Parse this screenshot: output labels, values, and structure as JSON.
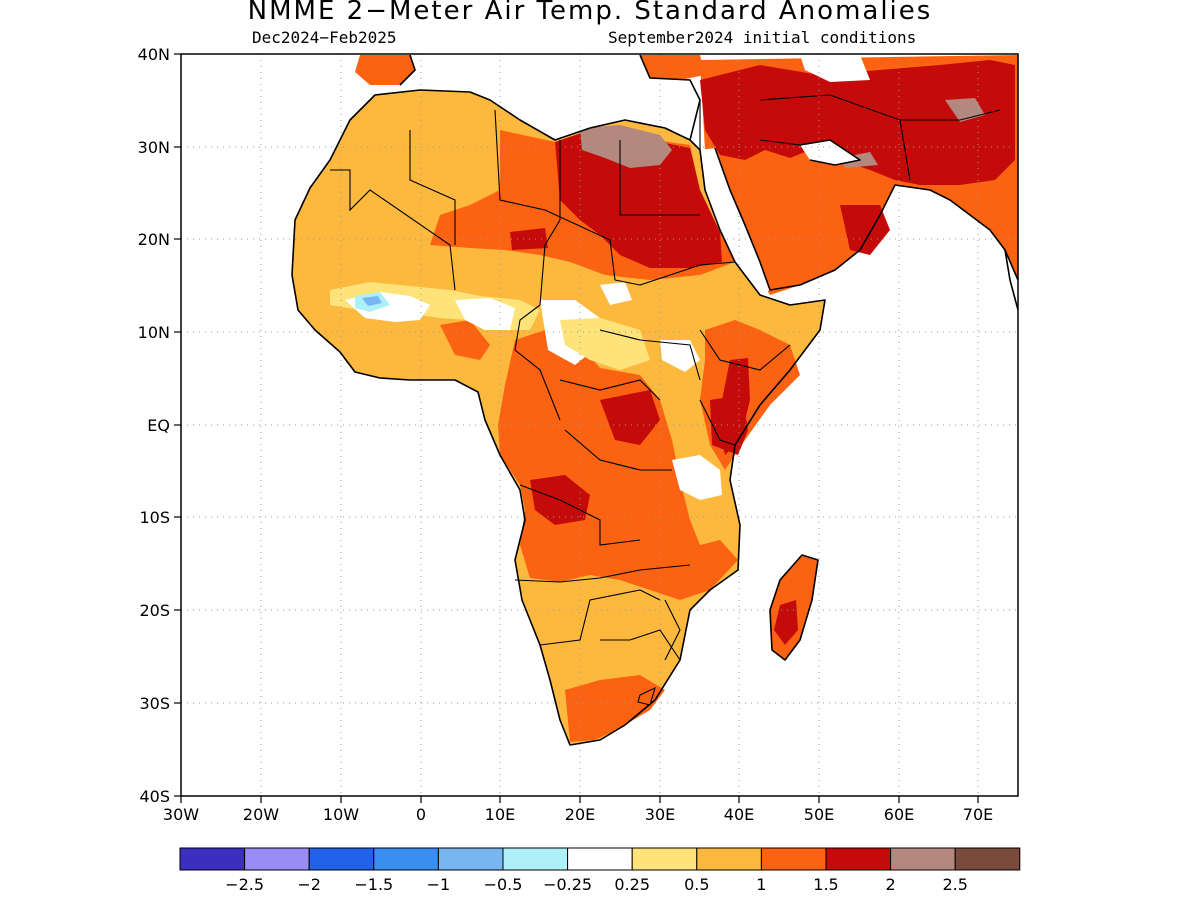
{
  "title": "NMME 2−Meter Air Temp. Standard Anomalies",
  "subtitle_left": "Dec2024−Feb2025",
  "subtitle_right": "September2024 initial conditions",
  "map": {
    "region": "Africa",
    "lat_range": [
      -40,
      40
    ],
    "lon_range": [
      -30,
      75
    ],
    "lat_ticks": [
      "40N",
      "30N",
      "20N",
      "10N",
      "EQ",
      "10S",
      "20S",
      "30S",
      "40S"
    ],
    "lon_ticks": [
      "30W",
      "20W",
      "10W",
      "0",
      "10E",
      "20E",
      "30E",
      "40E",
      "50E",
      "60E",
      "70E"
    ]
  },
  "legend": {
    "colors": [
      "#3b2fbf",
      "#9a8cf5",
      "#2162e8",
      "#3a8ef0",
      "#78b6f2",
      "#aef0f8",
      "#ffffff",
      "#fee27a",
      "#fdb93e",
      "#fb6211",
      "#c50a0a",
      "#b3887e",
      "#7a4a3d"
    ],
    "labels": [
      "−2.5",
      "−2",
      "−1.5",
      "−1",
      "−0.5",
      "−0.25",
      "0.25",
      "0.5",
      "1",
      "1.5",
      "2",
      "2.5"
    ]
  }
}
